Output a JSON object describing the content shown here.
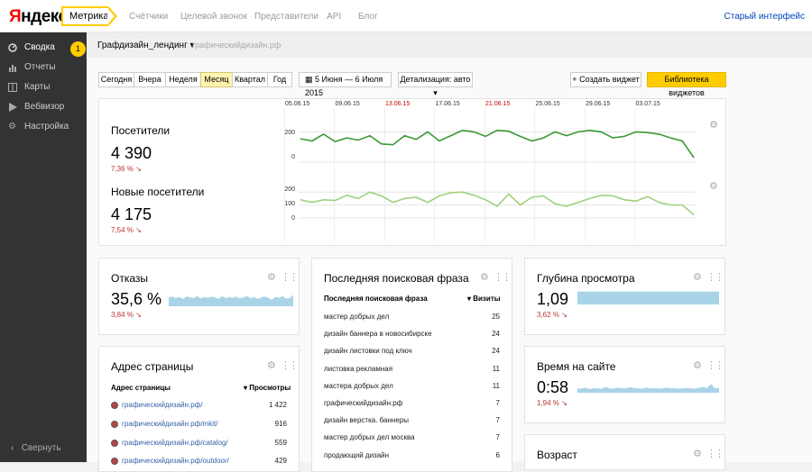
{
  "header": {
    "logo_y": "Я",
    "logo_rest": "ндекс",
    "product": "Метрика",
    "nav": [
      "Счётчики",
      "Целевой звонок",
      "Представители",
      "API",
      "Блог"
    ],
    "old_interface": "Старый интерфейс"
  },
  "sidebar": {
    "items": [
      {
        "label": "Сводка",
        "icon": "dashboard-icon"
      },
      {
        "label": "Отчеты",
        "icon": "bar-chart-icon"
      },
      {
        "label": "Карты",
        "icon": "map-icon"
      },
      {
        "label": "Вебвизор",
        "icon": "play-icon"
      },
      {
        "label": "Настройка",
        "icon": "gear-icon"
      }
    ],
    "badge": "1",
    "collapse": "Свернуть"
  },
  "site": {
    "name": "Графдизайн_лендинг",
    "domain": "графическийдизайн.рф"
  },
  "toolbar": {
    "periods": [
      "Сегодня",
      "Вчера",
      "Неделя",
      "Месяц",
      "Квартал",
      "Год"
    ],
    "selected": "Месяц",
    "date_range": "5 Июня — 6 Июля 2015",
    "detail": "Детализация: авто",
    "create_widget": "Создать виджет",
    "widget_library": "Библиотека виджетов"
  },
  "timeline": {
    "dates": [
      {
        "label": "05.06.15",
        "red": false
      },
      {
        "label": "09.06.15",
        "red": false
      },
      {
        "label": "13.06.15",
        "red": true
      },
      {
        "label": "17.06.15",
        "red": false
      },
      {
        "label": "21.06.15",
        "red": true
      },
      {
        "label": "25.06.15",
        "red": false
      },
      {
        "label": "29.06.15",
        "red": false
      },
      {
        "label": "03.07.15",
        "red": false
      }
    ]
  },
  "visitors": {
    "label": "Посетители",
    "value": "4 390",
    "delta": "7,36 % ↘",
    "yticks": [
      "200",
      "0"
    ]
  },
  "new_visitors": {
    "label": "Новые посетители",
    "value": "4 175",
    "delta": "7,54 % ↘",
    "yticks": [
      "200",
      "100",
      "0"
    ]
  },
  "bounces": {
    "label": "Отказы",
    "value": "35,6 %",
    "delta": "3,84 % ↘"
  },
  "depth": {
    "label": "Глубина просмотра",
    "value": "1,09",
    "delta": "3,62 % ↘"
  },
  "time_on_site": {
    "label": "Время на сайте",
    "value": "0:58",
    "delta": "1,94 % ↘"
  },
  "age": {
    "label": "Возраст"
  },
  "pages": {
    "label": "Адрес страницы",
    "col1": "Адрес страницы",
    "col2": "▾ Просмотры",
    "rows": [
      {
        "url": "графическийдизайн.рф/",
        "views": "1 422"
      },
      {
        "url": "графическийдизайн.рф/mkit/",
        "views": "916"
      },
      {
        "url": "графическийдизайн.рф/catalog/",
        "views": "559"
      },
      {
        "url": "графическийдизайн.рф/outdoor/",
        "views": "429"
      }
    ]
  },
  "search": {
    "label": "Последняя поисковая фраза",
    "col1": "Последняя поисковая фраза",
    "col2": "▾ Визиты",
    "rows": [
      {
        "phrase": "мастер добрых дел",
        "visits": "25"
      },
      {
        "phrase": "дизайн баннера в новосибирске",
        "visits": "24"
      },
      {
        "phrase": "дизайн листовки под ключ",
        "visits": "24"
      },
      {
        "phrase": "листовка рекламная",
        "visits": "11"
      },
      {
        "phrase": "мастера добрых дел",
        "visits": "11"
      },
      {
        "phrase": "графическийдизайн.рф",
        "visits": "7"
      },
      {
        "phrase": "дизайн верстка. баннеры",
        "visits": "7"
      },
      {
        "phrase": "мастер добрых дел москва",
        "visits": "7"
      },
      {
        "phrase": "продающий дизайн",
        "visits": "6"
      }
    ]
  },
  "chart_data": [
    {
      "type": "line",
      "title": "Посетители",
      "ylim": [
        0,
        250
      ],
      "color": "#3a9a35",
      "values": [
        155,
        140,
        185,
        135,
        160,
        145,
        175,
        120,
        115,
        175,
        150,
        200,
        140,
        175,
        210,
        200,
        170,
        210,
        205,
        170,
        140,
        160,
        200,
        175,
        200,
        210,
        200,
        160,
        170,
        200,
        195,
        185,
        160,
        140,
        30
      ]
    },
    {
      "type": "line",
      "title": "Новые посетители",
      "ylim": [
        0,
        250
      ],
      "color": "#9fd07f",
      "values": [
        140,
        120,
        140,
        135,
        175,
        150,
        200,
        170,
        120,
        150,
        160,
        120,
        170,
        195,
        200,
        175,
        140,
        90,
        185,
        100,
        160,
        170,
        110,
        90,
        120,
        150,
        175,
        170,
        140,
        130,
        165,
        120,
        100,
        100,
        25
      ]
    },
    {
      "type": "area",
      "title": "Отказы",
      "color": "#a9d4e8",
      "values": [
        55,
        60,
        50,
        58,
        45,
        60,
        55,
        50,
        62,
        48,
        58,
        52,
        60,
        55,
        45,
        62,
        50,
        58,
        52,
        60,
        48,
        55,
        62,
        50,
        58,
        45,
        55,
        60,
        52,
        40,
        58,
        52,
        62,
        48,
        50,
        70
      ]
    },
    {
      "type": "area",
      "title": "Глубина просмотра",
      "color": "#a9d4e8",
      "values": [
        90,
        90,
        90,
        90,
        90,
        90,
        90,
        90,
        90,
        90,
        90,
        90,
        90,
        90,
        90,
        90,
        90,
        90,
        90,
        90,
        90,
        90,
        90,
        90,
        90,
        90,
        90,
        90,
        90,
        90,
        90,
        90,
        90,
        90,
        90,
        90
      ]
    },
    {
      "type": "area",
      "title": "Время на сайте",
      "color": "#a9d4e8",
      "values": [
        30,
        28,
        35,
        25,
        32,
        30,
        28,
        40,
        30,
        28,
        35,
        32,
        30,
        38,
        33,
        30,
        28,
        35,
        30,
        32,
        28,
        30,
        35,
        30,
        32,
        28,
        30,
        33,
        30,
        28,
        35,
        40,
        32,
        60,
        30,
        35
      ]
    }
  ]
}
